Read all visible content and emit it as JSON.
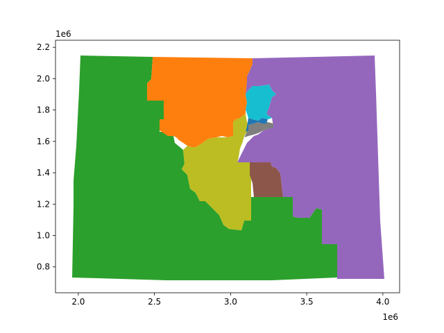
{
  "figure": {
    "x_offset_label": "1e6",
    "y_offset_label": "1e6",
    "x_ticks": [
      "2.0",
      "2.5",
      "3.0",
      "3.5",
      "4.0"
    ],
    "y_ticks": [
      "0.8",
      "1.0",
      "1.2",
      "1.4",
      "1.6",
      "1.8",
      "2.0",
      "2.2"
    ],
    "x_tick_values": [
      2.0,
      2.5,
      3.0,
      3.5,
      4.0
    ],
    "y_tick_values": [
      0.8,
      1.0,
      1.2,
      1.4,
      1.6,
      1.8,
      2.0,
      2.2
    ],
    "xlim": [
      1.85,
      4.11
    ],
    "ylim": [
      0.635,
      2.245
    ]
  },
  "map": {
    "type": "choropleth",
    "regions": [
      {
        "id": "district-green",
        "color": "#2ca02c"
      },
      {
        "id": "district-orange",
        "color": "#ff7f0e"
      },
      {
        "id": "district-purple",
        "color": "#9467bd"
      },
      {
        "id": "district-olive",
        "color": "#bcbd22"
      },
      {
        "id": "district-brown",
        "color": "#8c564b"
      },
      {
        "id": "district-cyan",
        "color": "#17becf"
      },
      {
        "id": "district-gray",
        "color": "#7f7f7f"
      },
      {
        "id": "district-blue",
        "color": "#1f77b4"
      }
    ]
  }
}
